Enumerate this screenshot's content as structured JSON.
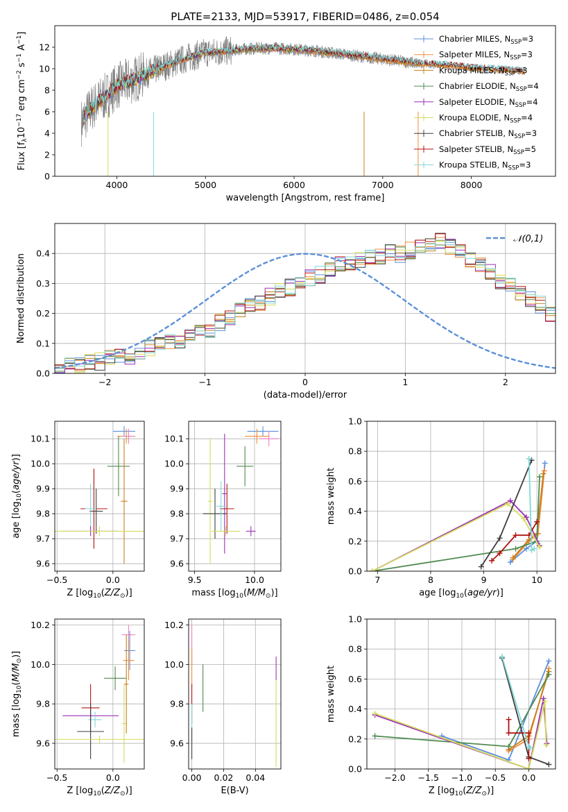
{
  "title": "PLATE=2133, MJD=53917, FIBERID=0486, z=0.054",
  "colors": {
    "chabrier_miles": "#5b8fd9",
    "salpeter_miles": "#f08c3a",
    "kroupa_miles": "#c6801a",
    "chabrier_elodie": "#4f8a4f",
    "salpeter_elodie": "#9e2fb5",
    "kroupa_elodie": "#d4dd5a",
    "chabrier_stelib": "#3d3d3d",
    "salpeter_stelib": "#b01212",
    "kroupa_stelib": "#7fd8d8",
    "pink_extra": "#f07fbf",
    "data_grey": "#808080",
    "gauss": "#5b8fd9"
  },
  "chart_data": [
    {
      "id": "spectrum",
      "type": "line",
      "xlabel": "wavelength [Angstrom, rest frame]",
      "ylabel": "Flux [f_λ10^-17 erg cm^-2 s^-1 A^-1]",
      "xlim": [
        3300,
        8950
      ],
      "ylim": [
        0,
        14
      ],
      "xticks": [
        4000,
        5000,
        6000,
        7000,
        8000
      ],
      "yticks": [
        0,
        2,
        4,
        6,
        8,
        10,
        12
      ],
      "legend": [
        "Chabrier MILES, N_SSP=3",
        "Salpeter MILES, N_SSP=3",
        "Kroupa MILES, N_SSP=3",
        "Chabrier ELODIE, N_SSP=4",
        "Salpeter ELODIE, N_SSP=4",
        "Kroupa ELODIE, N_SSP=4",
        "Chabrier STELIB, N_SSP=3",
        "Salpeter STELIB, N_SSP=5",
        "Kroupa STELIB, N_SSP=3"
      ],
      "continuum_x": [
        3600,
        3700,
        3800,
        3900,
        4000,
        4200,
        4400,
        4600,
        4800,
        5000,
        5200,
        5400,
        5600,
        5800,
        6000,
        6200,
        6400,
        6600,
        6800,
        7000,
        7200,
        7400,
        7600,
        7800,
        8000,
        8200,
        8400,
        8600,
        8800
      ],
      "continuum_y": [
        5.0,
        6.2,
        7.0,
        7.6,
        8.4,
        9.0,
        9.8,
        10.4,
        11.0,
        11.5,
        11.6,
        11.8,
        11.9,
        11.9,
        11.8,
        11.7,
        11.5,
        11.3,
        11.1,
        10.9,
        10.7,
        10.5,
        10.4,
        10.3,
        10.1,
        10.0,
        9.9,
        9.8,
        9.7
      ]
    },
    {
      "id": "residuals",
      "type": "bar",
      "xlabel": "(data-model)/error",
      "ylabel": "Normed distribution",
      "xlim": [
        -2.5,
        2.5
      ],
      "ylim": [
        0,
        0.5
      ],
      "xticks": [
        -2,
        -1,
        0,
        1,
        2
      ],
      "yticks": [
        0.0,
        0.1,
        0.2,
        0.3,
        0.4
      ],
      "legend": [
        "𝒩(0,1)"
      ],
      "bin_width": 0.1,
      "bin_start": -2.5,
      "base_values": [
        0.02,
        0.025,
        0.03,
        0.035,
        0.04,
        0.05,
        0.055,
        0.06,
        0.075,
        0.085,
        0.095,
        0.1,
        0.11,
        0.12,
        0.14,
        0.15,
        0.17,
        0.19,
        0.21,
        0.22,
        0.24,
        0.255,
        0.27,
        0.285,
        0.3,
        0.32,
        0.33,
        0.35,
        0.36,
        0.37,
        0.38,
        0.39,
        0.395,
        0.4,
        0.4,
        0.41,
        0.42,
        0.43,
        0.44,
        0.42,
        0.4,
        0.38,
        0.36,
        0.34,
        0.31,
        0.29,
        0.27,
        0.25,
        0.23,
        0.2,
        0.18,
        0.16,
        0.14,
        0.13,
        0.12,
        0.1,
        0.09,
        0.075,
        0.065,
        0.06,
        0.05,
        0.045,
        0.04,
        0.035,
        0.03
      ]
    },
    {
      "id": "age_vs_Z",
      "type": "scatter",
      "xlabel": "Z [log10(Z/Z⊙)]",
      "ylabel": "age  [log10(age/yr)]",
      "xlim": [
        -0.52,
        0.28
      ],
      "ylim": [
        9.57,
        10.17
      ],
      "xticks": [
        -0.5,
        0.0
      ],
      "yticks": [
        9.6,
        9.7,
        9.8,
        9.9,
        10.0,
        10.1
      ],
      "points": [
        {
          "c": "chabrier_miles",
          "x": 0.1,
          "y": 10.13,
          "xe": 0.1,
          "ye": 0.02
        },
        {
          "c": "salpeter_miles",
          "x": 0.12,
          "y": 10.11,
          "xe": 0.08,
          "ye": 0.03
        },
        {
          "c": "pink_extra",
          "x": 0.14,
          "y": 10.11,
          "xe": 0.05,
          "ye": 0.03
        },
        {
          "c": "chabrier_elodie",
          "x": 0.05,
          "y": 9.99,
          "xe": 0.1,
          "ye": 0.12
        },
        {
          "c": "kroupa_miles",
          "x": 0.1,
          "y": 9.85,
          "xe": 0.03,
          "ye": 0.25
        },
        {
          "c": "chabrier_stelib",
          "x": -0.15,
          "y": 9.81,
          "xe": 0.06,
          "ye": 0.09
        },
        {
          "c": "salpeter_stelib",
          "x": -0.17,
          "y": 9.82,
          "xe": 0.12,
          "ye": 0.16
        },
        {
          "c": "kroupa_stelib",
          "x": -0.2,
          "y": 9.82,
          "xe": 0.05,
          "ye": 0.1
        },
        {
          "c": "salpeter_elodie",
          "x": -0.2,
          "y": 9.73,
          "xe": 0.25,
          "ye": 0.02
        },
        {
          "c": "kroupa_elodie",
          "x": -0.12,
          "y": 9.73,
          "xe": 0.4,
          "ye": 0.02
        }
      ]
    },
    {
      "id": "age_vs_mass",
      "type": "scatter",
      "xlabel": "mass [log10(M/M⊙)]",
      "ylabel": "",
      "xlim": [
        9.45,
        10.22
      ],
      "ylim": [
        9.57,
        10.17
      ],
      "xticks": [
        9.5,
        10.0
      ],
      "yticks": [
        9.6,
        9.7,
        9.8,
        9.9,
        10.0,
        10.1
      ],
      "points": [
        {
          "c": "chabrier_miles",
          "x": 10.07,
          "y": 10.13,
          "xe": 0.13,
          "ye": 0.02
        },
        {
          "c": "salpeter_miles",
          "x": 10.02,
          "y": 10.11,
          "xe": 0.1,
          "ye": 0.03
        },
        {
          "c": "pink_extra",
          "x": 10.12,
          "y": 10.1,
          "xe": 0.08,
          "ye": 0.03
        },
        {
          "c": "chabrier_elodie",
          "x": 9.92,
          "y": 9.99,
          "xe": 0.07,
          "ye": 0.08
        },
        {
          "c": "salpeter_elodie",
          "x": 9.75,
          "y": 9.88,
          "xe": 0.02,
          "ye": 0.24
        },
        {
          "c": "kroupa_elodie",
          "x": 9.63,
          "y": 9.85,
          "xe": 0.02,
          "ye": 0.25
        },
        {
          "c": "chabrier_stelib",
          "x": 9.67,
          "y": 9.8,
          "xe": 0.1,
          "ye": 0.1
        },
        {
          "c": "salpeter_stelib",
          "x": 9.77,
          "y": 9.82,
          "xe": 0.06,
          "ye": 0.1
        },
        {
          "c": "kroupa_stelib",
          "x": 9.72,
          "y": 9.83,
          "xe": 0.04,
          "ye": 0.1
        },
        {
          "c": "kroupa_elodie",
          "x": 9.76,
          "y": 9.73,
          "xe": 0.12,
          "ye": 0.02
        },
        {
          "c": "salpeter_elodie",
          "x": 9.97,
          "y": 9.73,
          "xe": 0.04,
          "ye": 0.02
        }
      ]
    },
    {
      "id": "weight_vs_age",
      "type": "line",
      "xlabel": "age  [log10(age/yr)]",
      "ylabel": "mass weight",
      "xlim": [
        6.8,
        10.35
      ],
      "ylim": [
        0.0,
        1.0
      ],
      "xticks": [
        7,
        8,
        9,
        10
      ],
      "yticks": [
        0.0,
        0.2,
        0.4,
        0.6,
        0.8,
        1.0
      ],
      "series": [
        {
          "c": "chabrier_miles",
          "x": [
            9.5,
            9.8,
            10.0,
            10.15
          ],
          "y": [
            0.06,
            0.15,
            0.2,
            0.72
          ]
        },
        {
          "c": "salpeter_miles",
          "x": [
            9.55,
            9.85,
            10.02,
            10.14
          ],
          "y": [
            0.08,
            0.2,
            0.25,
            0.67
          ]
        },
        {
          "c": "kroupa_miles",
          "x": [
            9.55,
            9.85,
            10.0,
            10.12
          ],
          "y": [
            0.09,
            0.21,
            0.25,
            0.65
          ]
        },
        {
          "c": "chabrier_elodie",
          "x": [
            6.9,
            9.6,
            10.0,
            10.05
          ],
          "y": [
            0.0,
            0.15,
            0.2,
            0.63
          ]
        },
        {
          "c": "salpeter_elodie",
          "x": [
            6.9,
            9.5,
            9.8,
            10.05
          ],
          "y": [
            0.0,
            0.47,
            0.36,
            0.17
          ]
        },
        {
          "c": "kroupa_elodie",
          "x": [
            6.9,
            9.45,
            9.75,
            10.05
          ],
          "y": [
            0.0,
            0.45,
            0.35,
            0.16
          ]
        },
        {
          "c": "chabrier_stelib",
          "x": [
            8.95,
            9.3,
            9.9
          ],
          "y": [
            0.03,
            0.22,
            0.74
          ]
        },
        {
          "c": "salpeter_stelib",
          "x": [
            9.15,
            9.3,
            9.6,
            9.85,
            10.0
          ],
          "y": [
            0.07,
            0.12,
            0.24,
            0.24,
            0.33
          ]
        },
        {
          "c": "kroupa_stelib",
          "x": [
            9.85,
            9.9,
            9.95
          ],
          "y": [
            0.75,
            0.14,
            0.15
          ]
        }
      ]
    },
    {
      "id": "mass_vs_Z",
      "type": "scatter",
      "xlabel": "Z [log10(Z/Z⊙)]",
      "ylabel": "mass [log10(M/M⊙)]",
      "xlim": [
        -0.52,
        0.28
      ],
      "ylim": [
        9.47,
        10.23
      ],
      "xticks": [
        -0.5,
        0.0
      ],
      "yticks": [
        9.6,
        9.8,
        10.0,
        10.2
      ],
      "points": [
        {
          "c": "pink_extra",
          "x": 0.14,
          "y": 10.15,
          "xe": 0.06,
          "ye": 0.05
        },
        {
          "c": "chabrier_miles",
          "x": 0.15,
          "y": 10.07,
          "xe": 0.05,
          "ye": 0.1
        },
        {
          "c": "salpeter_miles",
          "x": 0.14,
          "y": 10.02,
          "xe": 0.05,
          "ye": 0.1
        },
        {
          "c": "chabrier_elodie",
          "x": 0.02,
          "y": 9.93,
          "xe": 0.1,
          "ye": 0.06
        },
        {
          "c": "salpeter_stelib",
          "x": -0.2,
          "y": 9.78,
          "xe": 0.08,
          "ye": 0.12
        },
        {
          "c": "salpeter_elodie",
          "x": -0.2,
          "y": 9.74,
          "xe": 0.25,
          "ye": 0.02
        },
        {
          "c": "kroupa_stelib",
          "x": -0.16,
          "y": 9.72,
          "xe": 0.06,
          "ye": 0.04
        },
        {
          "c": "chabrier_stelib",
          "x": -0.2,
          "y": 9.66,
          "xe": 0.12,
          "ye": 0.14
        },
        {
          "c": "kroupa_elodie",
          "x": -0.12,
          "y": 9.62,
          "xe": 0.4,
          "ye": 0.02
        },
        {
          "c": "kroupa_elodie",
          "x": 0.1,
          "y": 9.7,
          "xe": 0.02,
          "ye": 0.2
        },
        {
          "c": "kroupa_miles",
          "x": 0.12,
          "y": 9.9,
          "xe": 0.02,
          "ye": 0.25
        }
      ]
    },
    {
      "id": "mass_vs_ebv",
      "type": "scatter",
      "xlabel": "E(B-V)",
      "ylabel": "",
      "xlim": [
        -0.002,
        0.056
      ],
      "ylim": [
        9.47,
        10.23
      ],
      "xticks": [
        0.0,
        0.02,
        0.04
      ],
      "yticks": [
        9.6,
        9.8,
        10.0,
        10.2
      ],
      "points": [
        {
          "c": "pink_extra",
          "x": 0.0,
          "y": 10.1,
          "xe": 0.0,
          "ye": 0.1
        },
        {
          "c": "salpeter_miles",
          "x": 0.0,
          "y": 9.98,
          "xe": 0.0,
          "ye": 0.1
        },
        {
          "c": "salpeter_stelib",
          "x": 0.0,
          "y": 9.8,
          "xe": 0.0,
          "ye": 0.1
        },
        {
          "c": "kroupa_stelib",
          "x": 0.0,
          "y": 9.7,
          "xe": 0.0,
          "ye": 0.1
        },
        {
          "c": "chabrier_stelib",
          "x": 0.0,
          "y": 9.6,
          "xe": 0.0,
          "ye": 0.08
        },
        {
          "c": "chabrier_elodie",
          "x": 0.007,
          "y": 9.88,
          "xe": 0.0,
          "ye": 0.12
        },
        {
          "c": "salpeter_elodie",
          "x": 0.053,
          "y": 9.98,
          "xe": 0.0,
          "ye": 0.06
        },
        {
          "c": "kroupa_elodie",
          "x": 0.053,
          "y": 9.7,
          "xe": 0.0,
          "ye": 0.22
        }
      ]
    },
    {
      "id": "weight_vs_Z",
      "type": "line",
      "xlabel": "Z [log10(Z/Z⊙)]",
      "ylabel": "mass weight",
      "xlim": [
        -2.42,
        0.4
      ],
      "ylim": [
        0.0,
        1.0
      ],
      "xticks": [
        -2.0,
        -1.5,
        -1.0,
        -0.5,
        0.0
      ],
      "yticks": [
        0.0,
        0.2,
        0.4,
        0.6,
        0.8,
        1.0
      ],
      "series": [
        {
          "c": "chabrier_miles",
          "x": [
            -1.3,
            -0.3,
            0.3
          ],
          "y": [
            0.22,
            0.06,
            0.72
          ]
        },
        {
          "c": "salpeter_miles",
          "x": [
            -0.3,
            0.0,
            0.3
          ],
          "y": [
            0.12,
            0.2,
            0.67
          ]
        },
        {
          "c": "kroupa_miles",
          "x": [
            -0.3,
            0.0,
            0.3
          ],
          "y": [
            0.13,
            0.22,
            0.65
          ]
        },
        {
          "c": "chabrier_elodie",
          "x": [
            -2.3,
            -0.3,
            0.3
          ],
          "y": [
            0.22,
            0.15,
            0.63
          ]
        },
        {
          "c": "salpeter_elodie",
          "x": [
            -2.3,
            0.0,
            0.22,
            0.27
          ],
          "y": [
            0.36,
            0.0,
            0.47,
            0.17
          ]
        },
        {
          "c": "kroupa_elodie",
          "x": [
            -2.3,
            0.0,
            0.24,
            0.26
          ],
          "y": [
            0.37,
            0.0,
            0.45,
            0.16
          ]
        },
        {
          "c": "chabrier_stelib",
          "x": [
            -0.4,
            0.0,
            0.3
          ],
          "y": [
            0.74,
            0.08,
            0.03
          ]
        },
        {
          "c": "salpeter_stelib",
          "x": [
            -0.3,
            -0.3,
            0.0,
            0.0
          ],
          "y": [
            0.33,
            0.24,
            0.24,
            0.07
          ]
        },
        {
          "c": "kroupa_stelib",
          "x": [
            -0.4,
            0.0,
            0.02
          ],
          "y": [
            0.75,
            0.15,
            0.14
          ]
        }
      ]
    }
  ]
}
